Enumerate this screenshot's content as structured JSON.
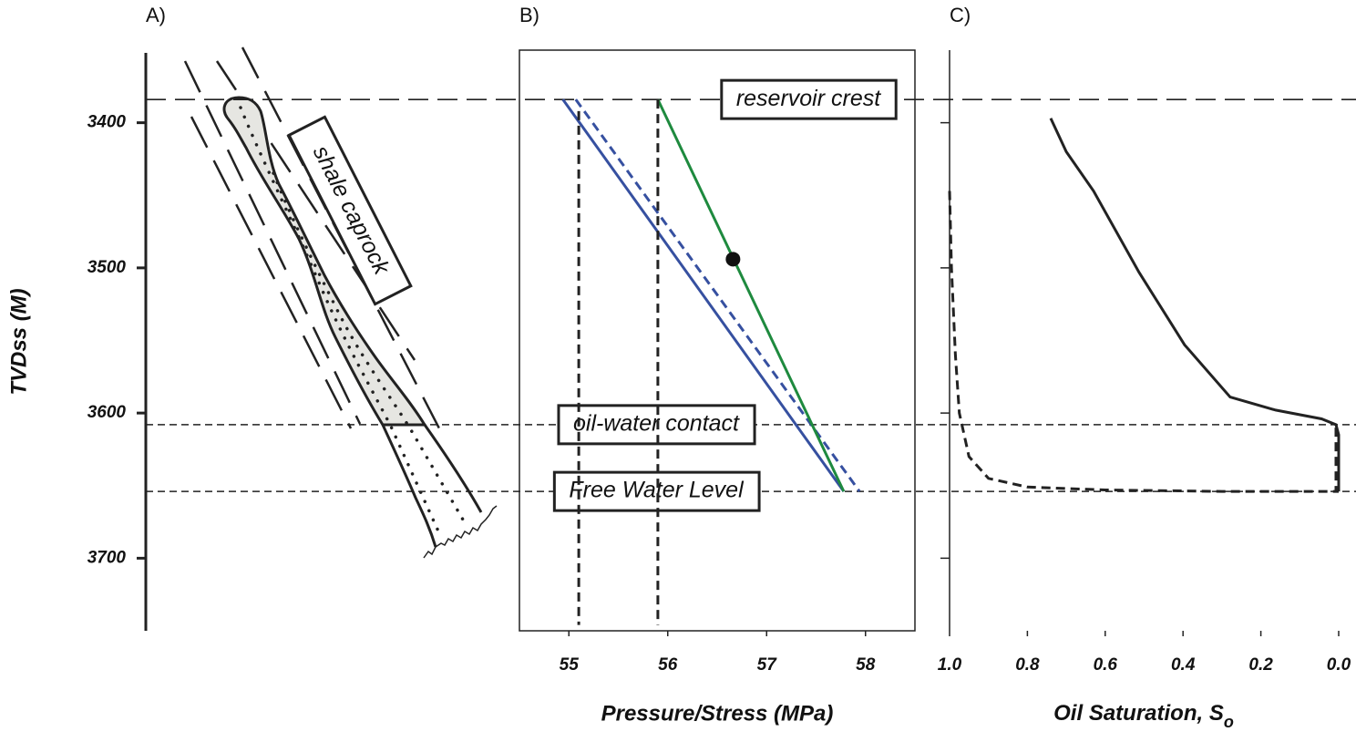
{
  "horizons": [
    {
      "label": "reservoir crest",
      "depth": 3384,
      "dash": "long"
    },
    {
      "label": "oil-water contact",
      "depth": 3608,
      "dash": "short"
    },
    {
      "label": "Free Water Level",
      "depth": 3654,
      "dash": "short"
    }
  ],
  "chart_data": [
    {
      "type": "schematic",
      "label": "A)",
      "ylabel": "TVDss (M)",
      "annotation": "shale caprock",
      "ylim": [
        3750,
        3350
      ],
      "yticks": [
        3400,
        3500,
        3600,
        3700
      ]
    },
    {
      "type": "line",
      "label": "B)",
      "xlabel": "Pressure/Stress (MPa)",
      "xlim": [
        54.5,
        58.5
      ],
      "xticks": [
        55,
        56,
        57,
        58
      ],
      "ylim": [
        3750,
        3350
      ],
      "series": [
        {
          "color": "#3650a0",
          "dash": false,
          "x": [
            54.94,
            57.78
          ],
          "values": [
            3384,
            3654
          ]
        },
        {
          "color": "#3650a0",
          "dash": true,
          "x": [
            55.07,
            57.94
          ],
          "values": [
            3384,
            3654
          ]
        },
        {
          "color": "#1e8a3e",
          "dash": false,
          "x": [
            55.9,
            57.78
          ],
          "values": [
            3384,
            3654
          ]
        },
        {
          "color": "#222222",
          "dash": true,
          "x": [
            55.1,
            55.1
          ],
          "values": [
            3392,
            3746
          ]
        },
        {
          "color": "#222222",
          "dash": true,
          "x": [
            55.9,
            55.9
          ],
          "values": [
            3384,
            3746
          ]
        }
      ],
      "points": [
        {
          "x": 56.66,
          "y": 3494,
          "color": "#111111"
        }
      ]
    },
    {
      "type": "line",
      "label": "C)",
      "xlabel": "Oil Saturation, S",
      "xlabel_subscript": "o",
      "xlim": [
        1.0,
        0.0
      ],
      "xticks": [
        {
          "value": 1.0,
          "label": "1.0"
        },
        0.8,
        0.6,
        0.4,
        0.2,
        {
          "value": 0.0,
          "label": "0.0"
        }
      ],
      "ylim": [
        3750,
        3350
      ],
      "yticks": [
        3400,
        3500,
        3600,
        3700
      ],
      "series": [
        {
          "color": "#222222",
          "dash": false,
          "x": [
            0.74,
            0.7,
            0.63,
            0.513,
            0.396,
            0.279,
            0.162,
            0.044,
            0.007,
            0.0,
            0.0
          ],
          "values": [
            3397,
            3420,
            3447,
            3503,
            3553,
            3589,
            3598,
            3604,
            3608,
            3615,
            3654
          ]
        },
        {
          "color": "#222222",
          "dash": true,
          "x": [
            1.0,
            0.995,
            0.985,
            0.975,
            0.95,
            0.9,
            0.8,
            0.6,
            0.3,
            0.0
          ],
          "values": [
            3447,
            3500,
            3560,
            3600,
            3630,
            3645,
            3651,
            3653,
            3654,
            3654
          ]
        },
        {
          "color": "#222222",
          "dash": true,
          "x": [
            0.007,
            0.007
          ],
          "values": [
            3610,
            3654
          ]
        }
      ]
    }
  ]
}
